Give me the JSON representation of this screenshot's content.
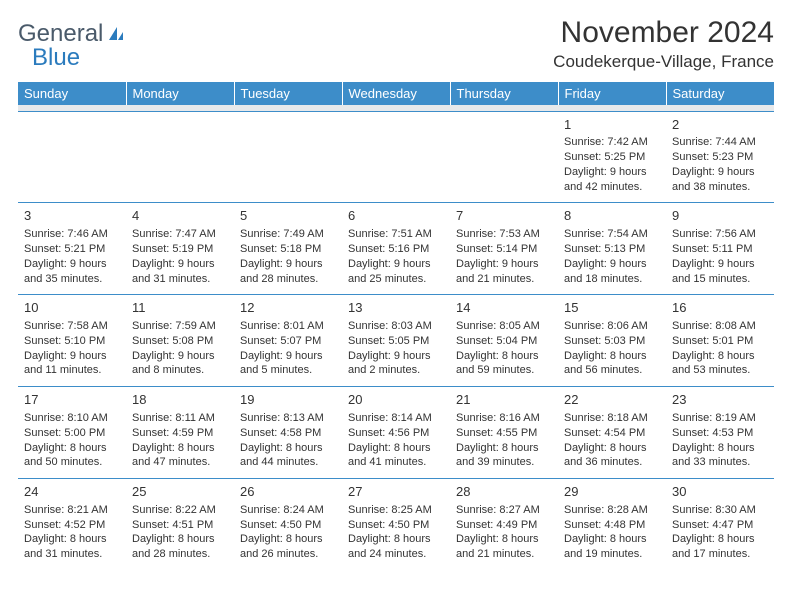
{
  "brand": {
    "word1": "General",
    "word2": "Blue"
  },
  "title": "November 2024",
  "location": "Coudekerque-Village, France",
  "columns": [
    "Sunday",
    "Monday",
    "Tuesday",
    "Wednesday",
    "Thursday",
    "Friday",
    "Saturday"
  ],
  "colors": {
    "header_bg": "#3d8dc9",
    "header_text": "#ffffff",
    "sep_bg": "#e7e9eb",
    "cell_border": "#3d8dc9",
    "text": "#333333",
    "logo_gray": "#4a5a6a",
    "logo_blue": "#2b7bbd"
  },
  "weeks": [
    [
      {
        "day": "",
        "sunrise": "",
        "sunset": "",
        "daylight": ""
      },
      {
        "day": "",
        "sunrise": "",
        "sunset": "",
        "daylight": ""
      },
      {
        "day": "",
        "sunrise": "",
        "sunset": "",
        "daylight": ""
      },
      {
        "day": "",
        "sunrise": "",
        "sunset": "",
        "daylight": ""
      },
      {
        "day": "",
        "sunrise": "",
        "sunset": "",
        "daylight": ""
      },
      {
        "day": "1",
        "sunrise": "Sunrise: 7:42 AM",
        "sunset": "Sunset: 5:25 PM",
        "daylight": "Daylight: 9 hours and 42 minutes."
      },
      {
        "day": "2",
        "sunrise": "Sunrise: 7:44 AM",
        "sunset": "Sunset: 5:23 PM",
        "daylight": "Daylight: 9 hours and 38 minutes."
      }
    ],
    [
      {
        "day": "3",
        "sunrise": "Sunrise: 7:46 AM",
        "sunset": "Sunset: 5:21 PM",
        "daylight": "Daylight: 9 hours and 35 minutes."
      },
      {
        "day": "4",
        "sunrise": "Sunrise: 7:47 AM",
        "sunset": "Sunset: 5:19 PM",
        "daylight": "Daylight: 9 hours and 31 minutes."
      },
      {
        "day": "5",
        "sunrise": "Sunrise: 7:49 AM",
        "sunset": "Sunset: 5:18 PM",
        "daylight": "Daylight: 9 hours and 28 minutes."
      },
      {
        "day": "6",
        "sunrise": "Sunrise: 7:51 AM",
        "sunset": "Sunset: 5:16 PM",
        "daylight": "Daylight: 9 hours and 25 minutes."
      },
      {
        "day": "7",
        "sunrise": "Sunrise: 7:53 AM",
        "sunset": "Sunset: 5:14 PM",
        "daylight": "Daylight: 9 hours and 21 minutes."
      },
      {
        "day": "8",
        "sunrise": "Sunrise: 7:54 AM",
        "sunset": "Sunset: 5:13 PM",
        "daylight": "Daylight: 9 hours and 18 minutes."
      },
      {
        "day": "9",
        "sunrise": "Sunrise: 7:56 AM",
        "sunset": "Sunset: 5:11 PM",
        "daylight": "Daylight: 9 hours and 15 minutes."
      }
    ],
    [
      {
        "day": "10",
        "sunrise": "Sunrise: 7:58 AM",
        "sunset": "Sunset: 5:10 PM",
        "daylight": "Daylight: 9 hours and 11 minutes."
      },
      {
        "day": "11",
        "sunrise": "Sunrise: 7:59 AM",
        "sunset": "Sunset: 5:08 PM",
        "daylight": "Daylight: 9 hours and 8 minutes."
      },
      {
        "day": "12",
        "sunrise": "Sunrise: 8:01 AM",
        "sunset": "Sunset: 5:07 PM",
        "daylight": "Daylight: 9 hours and 5 minutes."
      },
      {
        "day": "13",
        "sunrise": "Sunrise: 8:03 AM",
        "sunset": "Sunset: 5:05 PM",
        "daylight": "Daylight: 9 hours and 2 minutes."
      },
      {
        "day": "14",
        "sunrise": "Sunrise: 8:05 AM",
        "sunset": "Sunset: 5:04 PM",
        "daylight": "Daylight: 8 hours and 59 minutes."
      },
      {
        "day": "15",
        "sunrise": "Sunrise: 8:06 AM",
        "sunset": "Sunset: 5:03 PM",
        "daylight": "Daylight: 8 hours and 56 minutes."
      },
      {
        "day": "16",
        "sunrise": "Sunrise: 8:08 AM",
        "sunset": "Sunset: 5:01 PM",
        "daylight": "Daylight: 8 hours and 53 minutes."
      }
    ],
    [
      {
        "day": "17",
        "sunrise": "Sunrise: 8:10 AM",
        "sunset": "Sunset: 5:00 PM",
        "daylight": "Daylight: 8 hours and 50 minutes."
      },
      {
        "day": "18",
        "sunrise": "Sunrise: 8:11 AM",
        "sunset": "Sunset: 4:59 PM",
        "daylight": "Daylight: 8 hours and 47 minutes."
      },
      {
        "day": "19",
        "sunrise": "Sunrise: 8:13 AM",
        "sunset": "Sunset: 4:58 PM",
        "daylight": "Daylight: 8 hours and 44 minutes."
      },
      {
        "day": "20",
        "sunrise": "Sunrise: 8:14 AM",
        "sunset": "Sunset: 4:56 PM",
        "daylight": "Daylight: 8 hours and 41 minutes."
      },
      {
        "day": "21",
        "sunrise": "Sunrise: 8:16 AM",
        "sunset": "Sunset: 4:55 PM",
        "daylight": "Daylight: 8 hours and 39 minutes."
      },
      {
        "day": "22",
        "sunrise": "Sunrise: 8:18 AM",
        "sunset": "Sunset: 4:54 PM",
        "daylight": "Daylight: 8 hours and 36 minutes."
      },
      {
        "day": "23",
        "sunrise": "Sunrise: 8:19 AM",
        "sunset": "Sunset: 4:53 PM",
        "daylight": "Daylight: 8 hours and 33 minutes."
      }
    ],
    [
      {
        "day": "24",
        "sunrise": "Sunrise: 8:21 AM",
        "sunset": "Sunset: 4:52 PM",
        "daylight": "Daylight: 8 hours and 31 minutes."
      },
      {
        "day": "25",
        "sunrise": "Sunrise: 8:22 AM",
        "sunset": "Sunset: 4:51 PM",
        "daylight": "Daylight: 8 hours and 28 minutes."
      },
      {
        "day": "26",
        "sunrise": "Sunrise: 8:24 AM",
        "sunset": "Sunset: 4:50 PM",
        "daylight": "Daylight: 8 hours and 26 minutes."
      },
      {
        "day": "27",
        "sunrise": "Sunrise: 8:25 AM",
        "sunset": "Sunset: 4:50 PM",
        "daylight": "Daylight: 8 hours and 24 minutes."
      },
      {
        "day": "28",
        "sunrise": "Sunrise: 8:27 AM",
        "sunset": "Sunset: 4:49 PM",
        "daylight": "Daylight: 8 hours and 21 minutes."
      },
      {
        "day": "29",
        "sunrise": "Sunrise: 8:28 AM",
        "sunset": "Sunset: 4:48 PM",
        "daylight": "Daylight: 8 hours and 19 minutes."
      },
      {
        "day": "30",
        "sunrise": "Sunrise: 8:30 AM",
        "sunset": "Sunset: 4:47 PM",
        "daylight": "Daylight: 8 hours and 17 minutes."
      }
    ]
  ]
}
